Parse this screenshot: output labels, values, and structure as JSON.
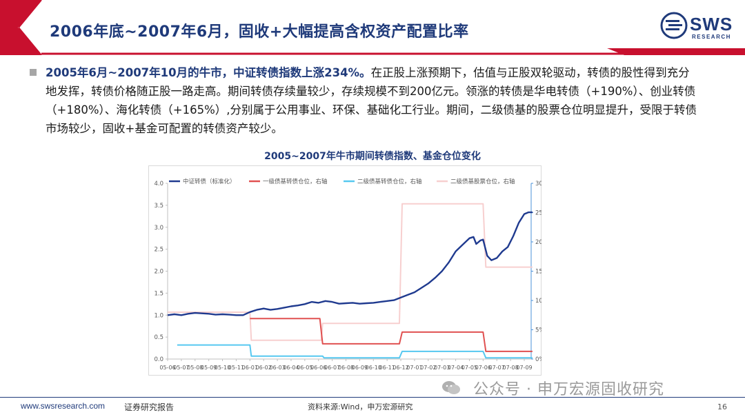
{
  "header": {
    "title": "2006年底~2007年6月，固收+大幅提高含权资产配置比率",
    "logo_text": "SWS",
    "logo_sub": "RESEARCH"
  },
  "body": {
    "highlight": "2005年6月~2007年10月的牛市，中证转债指数上涨234%。",
    "text": "在正股上涨预期下，估值与正股双轮驱动，转债的股性得到充分地发挥，转债价格随正股一路走高。期间转债存续量较少，存续规模不到200亿元。领涨的转债是华电转债（+190%）、创业转债（+180%）、海化转债（+165%）,分别属于公用事业、环保、基础化工行业。期间，二级债基的股票仓位明显提升，受限于转债市场较少，固收+基金可配置的转债资产较少。"
  },
  "chart_data": {
    "type": "line",
    "title": "2005~2007年牛市期间转债指数、基金仓位变化",
    "x_ticks": [
      "05-06",
      "05-07",
      "05-08",
      "05-09",
      "05-10",
      "05-11",
      "06-01",
      "06-02",
      "06-03",
      "06-04",
      "06-05",
      "06-06",
      "06-07",
      "06-08",
      "06-09",
      "06-10",
      "06-11",
      "06-12",
      "07-01",
      "07-02",
      "07-03",
      "07-04",
      "07-05",
      "07-06",
      "07-07",
      "07-08",
      "07-09"
    ],
    "y_left": {
      "min": 0,
      "max": 4.0,
      "ticks": [
        "0.0",
        "0.5",
        "1.0",
        "1.5",
        "2.0",
        "2.5",
        "3.0",
        "3.5",
        "4.0"
      ]
    },
    "y_right": {
      "min": 0,
      "max": 30,
      "ticks": [
        "0%",
        "5%",
        "10%",
        "15%",
        "20%",
        "25%",
        "30%"
      ]
    },
    "series": [
      {
        "name": "中证转债（标准化）",
        "axis": "left",
        "color": "#1f3a8f",
        "points": [
          [
            0,
            1.0
          ],
          [
            0.5,
            1.02
          ],
          [
            1,
            1.0
          ],
          [
            1.5,
            1.03
          ],
          [
            2,
            1.05
          ],
          [
            2.5,
            1.04
          ],
          [
            3,
            1.03
          ],
          [
            3.5,
            1.01
          ],
          [
            4,
            1.02
          ],
          [
            4.5,
            1.01
          ],
          [
            5,
            1.0
          ],
          [
            5.5,
            1.0
          ],
          [
            6,
            1.07
          ],
          [
            6.5,
            1.12
          ],
          [
            7,
            1.15
          ],
          [
            7.5,
            1.12
          ],
          [
            8,
            1.14
          ],
          [
            8.5,
            1.17
          ],
          [
            9,
            1.2
          ],
          [
            9.5,
            1.22
          ],
          [
            10,
            1.25
          ],
          [
            10.5,
            1.3
          ],
          [
            11,
            1.28
          ],
          [
            11.5,
            1.32
          ],
          [
            12,
            1.3
          ],
          [
            12.5,
            1.26
          ],
          [
            13,
            1.27
          ],
          [
            13.5,
            1.28
          ],
          [
            14,
            1.26
          ],
          [
            14.5,
            1.27
          ],
          [
            15,
            1.28
          ],
          [
            15.5,
            1.3
          ],
          [
            16,
            1.32
          ],
          [
            16.5,
            1.34
          ],
          [
            17,
            1.4
          ],
          [
            17.5,
            1.46
          ],
          [
            18,
            1.52
          ],
          [
            18.5,
            1.62
          ],
          [
            19,
            1.72
          ],
          [
            19.5,
            1.85
          ],
          [
            20,
            2.0
          ],
          [
            20.5,
            2.2
          ],
          [
            21,
            2.45
          ],
          [
            21.5,
            2.6
          ],
          [
            22,
            2.75
          ],
          [
            22.3,
            2.78
          ],
          [
            22.5,
            2.62
          ],
          [
            22.8,
            2.7
          ],
          [
            23,
            2.72
          ],
          [
            23.3,
            2.35
          ],
          [
            23.6,
            2.25
          ],
          [
            24,
            2.3
          ],
          [
            24.4,
            2.45
          ],
          [
            24.8,
            2.55
          ],
          [
            25.2,
            2.8
          ],
          [
            25.6,
            3.1
          ],
          [
            26,
            3.3
          ],
          [
            26.3,
            3.34
          ],
          [
            26.6,
            3.34
          ]
        ]
      },
      {
        "name": "一级债基转债仓位，右轴",
        "axis": "right",
        "color": "#e05050",
        "points": [
          [
            6,
            6.9
          ],
          [
            11.1,
            6.9
          ],
          [
            11.3,
            2.6
          ],
          [
            16.9,
            2.6
          ],
          [
            17.1,
            4.6
          ],
          [
            23,
            4.6
          ],
          [
            23.2,
            1.3
          ],
          [
            26.6,
            1.3
          ]
        ]
      },
      {
        "name": "二级债基转债仓位，右轴",
        "axis": "right",
        "color": "#56c8f0",
        "points": [
          [
            0.7,
            2.4
          ],
          [
            6,
            2.4
          ],
          [
            6.1,
            0.5
          ],
          [
            11.3,
            0.5
          ],
          [
            11.4,
            0.2
          ],
          [
            16.9,
            0.2
          ],
          [
            17.1,
            1.3
          ],
          [
            23,
            1.3
          ],
          [
            23.2,
            0.2
          ],
          [
            26.6,
            0.2
          ]
        ]
      },
      {
        "name": "二级债基股票仓位，右轴",
        "axis": "right",
        "color": "#f7cfcf",
        "points": [
          [
            0,
            8.0
          ],
          [
            6,
            8.0
          ],
          [
            6.1,
            3.2
          ],
          [
            11.2,
            3.2
          ],
          [
            11.3,
            6.1
          ],
          [
            16.9,
            6.1
          ],
          [
            17.1,
            26.5
          ],
          [
            23,
            26.5
          ],
          [
            23.2,
            15.7
          ],
          [
            26.6,
            15.7
          ]
        ]
      }
    ]
  },
  "footer": {
    "url": "www.swsresearch.com",
    "report": "证券研究报告",
    "source": "资料来源:Wind，申万宏源研究",
    "page": "16",
    "watermark": "公众号 · 申万宏源固收研究"
  }
}
